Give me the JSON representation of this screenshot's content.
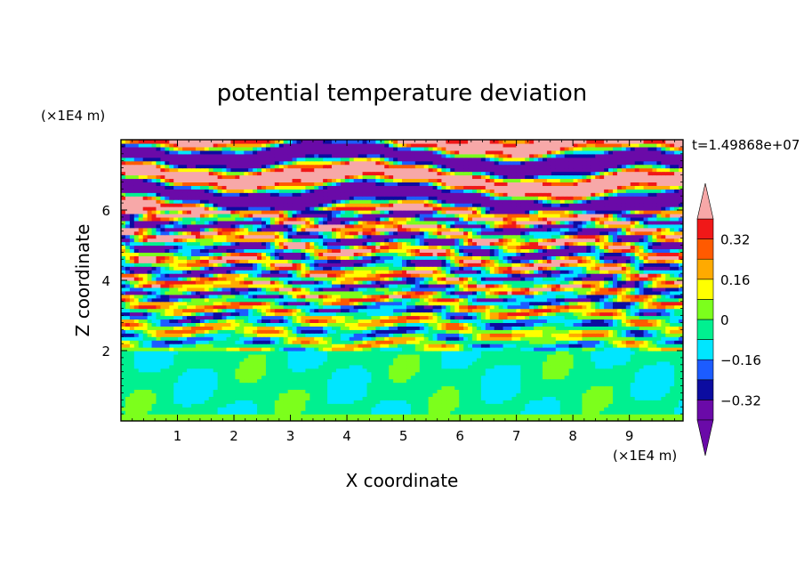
{
  "chart_data": {
    "type": "heatmap",
    "title": "potential temperature deviation",
    "xlabel": "X coordinate",
    "ylabel": "Z coordinate",
    "x_unit": "(×1E4 m)",
    "y_unit": "(×1E4 m)",
    "time_label": "t=1.49868e+07",
    "xlim": [
      0,
      9.95
    ],
    "ylim": [
      0,
      8
    ],
    "x_ticks": [
      1,
      2,
      3,
      4,
      5,
      6,
      7,
      8,
      9
    ],
    "y_ticks": [
      2,
      4,
      6
    ],
    "x_tick_labels": [
      "1",
      "2",
      "3",
      "4",
      "5",
      "6",
      "7",
      "8",
      "9"
    ],
    "y_tick_labels": [
      "2",
      "4",
      "6"
    ],
    "colorbar": {
      "levels": [
        -0.4,
        -0.32,
        -0.24,
        -0.16,
        -0.08,
        0,
        0.08,
        0.16,
        0.24,
        0.32,
        0.4
      ],
      "tick_values": [
        0.32,
        0.16,
        0,
        -0.16,
        -0.32
      ],
      "tick_labels": [
        "0.32",
        "0.16",
        "0",
        "−0.16",
        "−0.32"
      ],
      "colors": [
        "#6a0aa8",
        "#0c0ca0",
        "#1c5cff",
        "#00e6ff",
        "#00f090",
        "#7cff1c",
        "#ffff00",
        "#ffaa00",
        "#ff5a00",
        "#f01818",
        "#f7a8a8"
      ],
      "extend": "both"
    },
    "layers": [
      {
        "z_range": [
          0,
          2.0
        ],
        "description": "lower layer mostly near 0 to -0.08 (green/spring green)"
      },
      {
        "z_range": [
          2.0,
          6.0
        ],
        "description": "turbulent band with full range of values"
      },
      {
        "z_range": [
          6.0,
          8.0
        ],
        "description": "alternating strong positive (pink) and strong negative (purple) stripes"
      }
    ]
  }
}
